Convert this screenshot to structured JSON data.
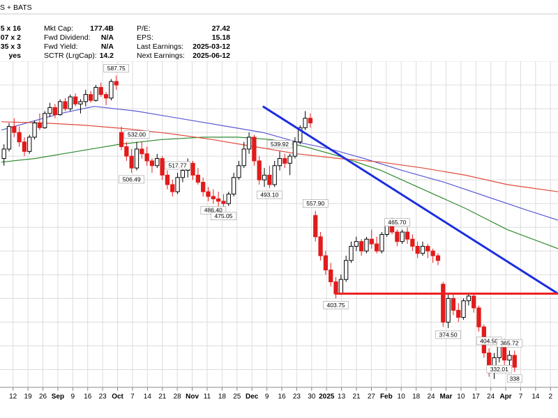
{
  "header": {
    "source_suffix": "S + BATS",
    "left_col": [
      "5 x 16",
      "07 x 2",
      "35 x 3",
      "yes"
    ],
    "col2_labels": [
      "Mkt Cap:",
      "Fwd Dividend:",
      "Fwd Yield:",
      "SCTR (LrgCap):"
    ],
    "col2_values": [
      "177.4B",
      "N/A",
      "N/A",
      "14.2"
    ],
    "col3_labels": [
      "P/E:",
      "EPS:",
      "Last Earnings:",
      "Next Earnings:"
    ],
    "col3_values": [
      "27.42",
      "15.18",
      "2025-03-12",
      "2025-06-12"
    ]
  },
  "colors": {
    "up_candle": "#000000",
    "down_candle": "#e21b1b",
    "ma_blue": "#5b5bd6",
    "ma_green": "#2e8b2e",
    "ma_red": "#e04a3a",
    "trendline": "#1c2ee0",
    "support": "#ee2222",
    "grid": "#dcdcdc"
  },
  "chart_data": {
    "type": "candlestick",
    "ylim": [
      325,
      600
    ],
    "grid": true,
    "x_tick_labels": [
      {
        "label": "12",
        "bold": false
      },
      {
        "label": "19",
        "bold": false
      },
      {
        "label": "26",
        "bold": false
      },
      {
        "label": "Sep",
        "bold": true
      },
      {
        "label": "9",
        "bold": false
      },
      {
        "label": "16",
        "bold": false
      },
      {
        "label": "23",
        "bold": false
      },
      {
        "label": "Oct",
        "bold": true
      },
      {
        "label": "7",
        "bold": false
      },
      {
        "label": "14",
        "bold": false
      },
      {
        "label": "21",
        "bold": false
      },
      {
        "label": "28",
        "bold": false
      },
      {
        "label": "Nov",
        "bold": true
      },
      {
        "label": "11",
        "bold": false
      },
      {
        "label": "18",
        "bold": false
      },
      {
        "label": "25",
        "bold": false
      },
      {
        "label": "Dec",
        "bold": true
      },
      {
        "label": "9",
        "bold": false
      },
      {
        "label": "16",
        "bold": false
      },
      {
        "label": "23",
        "bold": false
      },
      {
        "label": "30",
        "bold": false
      },
      {
        "label": "2025",
        "bold": true
      },
      {
        "label": "13",
        "bold": false
      },
      {
        "label": "21",
        "bold": false
      },
      {
        "label": "27",
        "bold": false
      },
      {
        "label": "Feb",
        "bold": true
      },
      {
        "label": "10",
        "bold": false
      },
      {
        "label": "18",
        "bold": false
      },
      {
        "label": "24",
        "bold": false
      },
      {
        "label": "Mar",
        "bold": true
      },
      {
        "label": "10",
        "bold": false
      },
      {
        "label": "17",
        "bold": false
      },
      {
        "label": "24",
        "bold": false
      },
      {
        "label": "Apr",
        "bold": true
      },
      {
        "label": "7",
        "bold": false
      },
      {
        "label": "14",
        "bold": false
      },
      {
        "label": "2",
        "bold": false
      }
    ],
    "price_callouts": [
      "587.75",
      "557.90",
      "539.92",
      "532.00",
      "517.77",
      "506.49",
      "486.40",
      "475.05",
      "493.10",
      "465.70",
      "403.75",
      "404.50",
      "374.50",
      "365.72",
      "332.01",
      "338"
    ],
    "support_level": 404,
    "series": [
      {
        "kind": "candles",
        "points": [
          [
            518,
            530,
            512,
            526
          ],
          [
            526,
            548,
            524,
            545
          ],
          [
            545,
            552,
            536,
            540
          ],
          [
            540,
            545,
            528,
            532
          ],
          [
            532,
            536,
            520,
            524
          ],
          [
            524,
            538,
            522,
            536
          ],
          [
            536,
            550,
            534,
            548
          ],
          [
            548,
            556,
            542,
            544
          ],
          [
            544,
            558,
            543,
            556
          ],
          [
            556,
            565,
            553,
            561
          ],
          [
            561,
            564,
            552,
            555
          ],
          [
            555,
            568,
            554,
            566
          ],
          [
            566,
            569,
            558,
            560
          ],
          [
            560,
            572,
            558,
            570
          ],
          [
            570,
            573,
            562,
            564
          ],
          [
            564,
            568,
            556,
            566
          ],
          [
            566,
            576,
            562,
            572
          ],
          [
            572,
            575,
            565,
            567
          ],
          [
            567,
            580,
            566,
            578
          ],
          [
            578,
            582,
            570,
            572
          ],
          [
            572,
            574,
            563,
            569
          ],
          [
            569,
            585,
            567,
            583
          ],
          [
            583,
            588,
            576,
            580
          ],
          [
            540,
            545,
            525,
            528
          ],
          [
            528,
            532,
            516,
            520
          ],
          [
            520,
            526,
            506,
            510
          ],
          [
            510,
            532,
            508,
            526
          ],
          [
            526,
            532,
            518,
            522
          ],
          [
            522,
            528,
            512,
            516
          ],
          [
            516,
            518,
            506,
            512
          ],
          [
            512,
            522,
            510,
            518
          ],
          [
            518,
            520,
            500,
            504
          ],
          [
            504,
            508,
            492,
            496
          ],
          [
            496,
            500,
            486,
            490
          ],
          [
            490,
            506,
            488,
            502
          ],
          [
            502,
            512,
            498,
            508
          ],
          [
            508,
            518,
            502,
            514
          ],
          [
            514,
            516,
            500,
            504
          ],
          [
            504,
            510,
            496,
            498
          ],
          [
            498,
            502,
            486,
            490
          ],
          [
            490,
            494,
            482,
            486
          ],
          [
            486,
            492,
            480,
            484
          ],
          [
            484,
            490,
            476,
            482
          ],
          [
            482,
            488,
            475,
            480
          ],
          [
            480,
            490,
            478,
            488
          ],
          [
            488,
            506,
            486,
            502
          ],
          [
            502,
            516,
            500,
            512
          ],
          [
            512,
            532,
            510,
            526
          ],
          [
            526,
            540,
            522,
            536
          ],
          [
            536,
            538,
            512,
            516
          ],
          [
            516,
            520,
            496,
            500
          ],
          [
            500,
            510,
            494,
            504
          ],
          [
            504,
            512,
            493,
            496
          ],
          [
            496,
            516,
            494,
            512
          ],
          [
            512,
            524,
            508,
            518
          ],
          [
            518,
            522,
            510,
            514
          ],
          [
            514,
            522,
            504,
            520
          ],
          [
            520,
            536,
            518,
            532
          ],
          [
            532,
            546,
            530,
            544
          ],
          [
            544,
            558,
            542,
            552
          ],
          [
            552,
            556,
            544,
            548
          ],
          [
            470,
            474,
            448,
            452
          ],
          [
            452,
            456,
            432,
            436
          ],
          [
            436,
            440,
            420,
            424
          ],
          [
            424,
            430,
            410,
            414
          ],
          [
            414,
            418,
            400,
            404
          ],
          [
            404,
            420,
            403,
            416
          ],
          [
            416,
            436,
            414,
            432
          ],
          [
            432,
            448,
            430,
            444
          ],
          [
            444,
            452,
            440,
            448
          ],
          [
            448,
            450,
            436,
            440
          ],
          [
            440,
            452,
            438,
            450
          ],
          [
            450,
            458,
            442,
            446
          ],
          [
            446,
            452,
            438,
            440
          ],
          [
            440,
            456,
            438,
            454
          ],
          [
            454,
            466,
            452,
            462
          ],
          [
            462,
            468,
            454,
            456
          ],
          [
            456,
            458,
            444,
            448
          ],
          [
            448,
            458,
            446,
            456
          ],
          [
            456,
            460,
            446,
            450
          ],
          [
            450,
            454,
            440,
            444
          ],
          [
            444,
            448,
            434,
            438
          ],
          [
            438,
            448,
            436,
            444
          ],
          [
            444,
            446,
            434,
            440
          ],
          [
            440,
            442,
            430,
            436
          ],
          [
            436,
            438,
            428,
            432
          ],
          [
            412,
            414,
            376,
            380
          ],
          [
            380,
            404,
            375,
            400
          ],
          [
            400,
            404,
            386,
            390
          ],
          [
            390,
            396,
            380,
            384
          ],
          [
            384,
            400,
            382,
            398
          ],
          [
            398,
            405,
            394,
            402
          ],
          [
            402,
            404,
            388,
            392
          ],
          [
            392,
            394,
            372,
            376
          ],
          [
            376,
            378,
            350,
            354
          ],
          [
            354,
            358,
            334,
            338
          ],
          [
            338,
            354,
            332,
            350
          ],
          [
            350,
            366,
            346,
            362
          ],
          [
            362,
            366,
            344,
            348
          ],
          [
            348,
            356,
            342,
            352
          ],
          [
            352,
            356,
            338,
            342
          ]
        ]
      },
      {
        "kind": "line",
        "name": "",
        "values": [
          [
            0,
            542
          ],
          [
            6,
            548
          ],
          [
            14,
            556
          ],
          [
            22,
            562
          ],
          [
            32,
            558
          ],
          [
            42,
            552
          ],
          [
            52,
            546
          ],
          [
            62,
            540
          ],
          [
            70,
            532
          ],
          [
            78,
            526
          ],
          [
            86,
            518
          ],
          [
            95,
            508
          ],
          [
            105,
            498
          ],
          [
            115,
            486
          ],
          [
            125,
            474
          ],
          [
            132,
            466
          ]
        ]
      },
      {
        "kind": "line",
        "name": "",
        "values": [
          [
            0,
            515
          ],
          [
            8,
            518
          ],
          [
            18,
            524
          ],
          [
            28,
            530
          ],
          [
            38,
            534
          ],
          [
            48,
            536
          ],
          [
            56,
            536
          ],
          [
            64,
            534
          ],
          [
            72,
            528
          ],
          [
            80,
            520
          ],
          [
            90,
            508
          ],
          [
            100,
            492
          ],
          [
            110,
            476
          ],
          [
            120,
            458
          ],
          [
            132,
            442
          ]
        ]
      },
      {
        "kind": "line",
        "name": "",
        "values": [
          [
            0,
            549
          ],
          [
            10,
            548
          ],
          [
            20,
            546
          ],
          [
            30,
            543
          ],
          [
            40,
            539
          ],
          [
            50,
            534
          ],
          [
            60,
            528
          ],
          [
            70,
            522
          ],
          [
            80,
            518
          ],
          [
            90,
            515
          ],
          [
            100,
            510
          ],
          [
            110,
            504
          ],
          [
            120,
            496
          ],
          [
            132,
            490
          ]
        ]
      }
    ],
    "trendline": {
      "from": [
        62,
        562
      ],
      "to": [
        132,
        404
      ]
    },
    "support_line": {
      "from": [
        79,
        404
      ],
      "to": [
        132,
        404
      ]
    }
  }
}
